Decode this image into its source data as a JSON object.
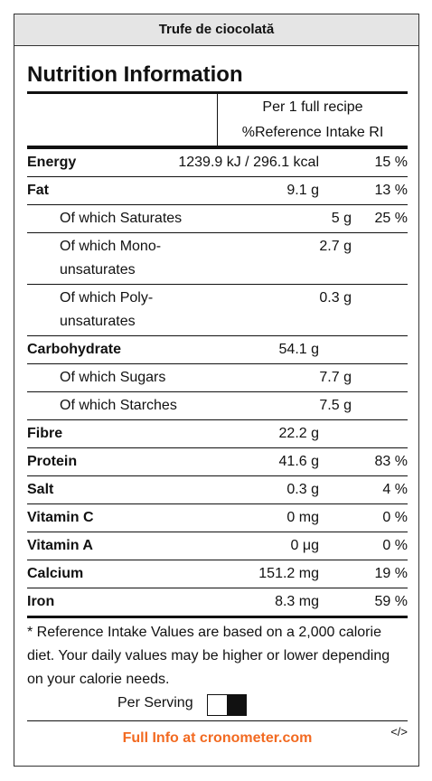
{
  "header": {
    "title": "Trufe de ciocolată"
  },
  "heading": "Nutrition Information",
  "columns": {
    "amount": "Per 1 full recipe",
    "ri": "%Reference Intake RI"
  },
  "rows": [
    {
      "name": "Energy",
      "bold": true,
      "amount": "1239.9 kJ / 296.1 kcal",
      "ri": "15 %"
    },
    {
      "name": "Fat",
      "bold": true,
      "amount": "9.1 g",
      "ri": "13 %"
    },
    {
      "name": "Of which Saturates",
      "amount": "5 g",
      "ri": "25 %"
    },
    {
      "name": "Of which Mono-unsaturates",
      "amount": "2.7 g"
    },
    {
      "name": "Of which Poly-unsaturates",
      "amount": "0.3 g"
    },
    {
      "name": "Carbohydrate",
      "bold": true,
      "amount": "54.1 g"
    },
    {
      "name": "Of which Sugars",
      "amount": "7.7 g"
    },
    {
      "name": "Of which Starches",
      "amount": "7.5 g"
    },
    {
      "name": "Fibre",
      "bold": true,
      "amount": "22.2 g"
    },
    {
      "name": "Protein",
      "bold": true,
      "amount": "41.6 g",
      "ri": "83 %"
    },
    {
      "name": "Salt",
      "bold": true,
      "amount": "0.3 g",
      "ri": "4 %"
    },
    {
      "name": "Vitamin C",
      "bold": true,
      "amount": "0 mg",
      "ri": "0 %"
    },
    {
      "name": "Vitamin A",
      "bold": true,
      "amount": "0 μg",
      "ri": "0 %"
    },
    {
      "name": "Calcium",
      "bold": true,
      "amount": "151.2 mg",
      "ri": "19 %"
    },
    {
      "name": "Iron",
      "bold": true,
      "amount": "8.3 mg",
      "ri": "59 %"
    }
  ],
  "footnote": "* Reference Intake Values are based on a 2,000 calorie diet. Your daily values may be higher or lower depending on your calorie needs.",
  "toggle_label": "Per Serving",
  "link": "Full Info at cronometer.com",
  "embed": "</>"
}
